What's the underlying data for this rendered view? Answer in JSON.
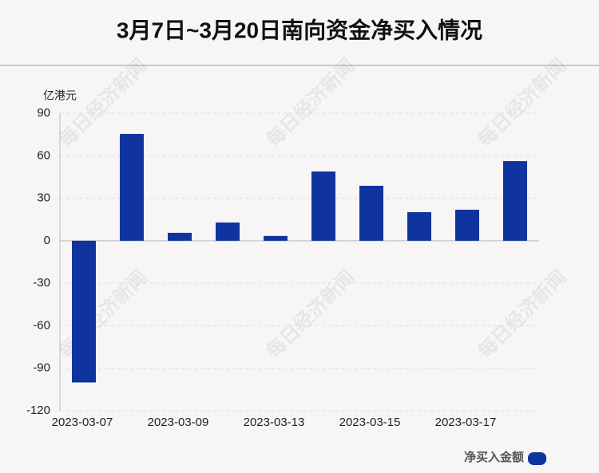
{
  "chart_data": {
    "type": "bar",
    "title": "3月7日~3月20日南向资金净买入情况",
    "y_axis_label": "亿港元",
    "categories": [
      "2023-03-07",
      null,
      "2023-03-09",
      null,
      "2023-03-13",
      null,
      "2023-03-15",
      null,
      "2023-03-17",
      null
    ],
    "series": [
      {
        "name": "净买入金额",
        "color": "#0f34a0",
        "values": [
          -100,
          75.4,
          5.6,
          12.9,
          3.4,
          48.9,
          38.8,
          20.2,
          21.9,
          56.2
        ]
      }
    ],
    "ylim": [
      -120,
      90
    ],
    "yticks": [
      -120,
      -90,
      -60,
      -30,
      0,
      30,
      60,
      90
    ],
    "grid": true,
    "legend": "bottom-right",
    "watermark": "每日经济新闻"
  }
}
